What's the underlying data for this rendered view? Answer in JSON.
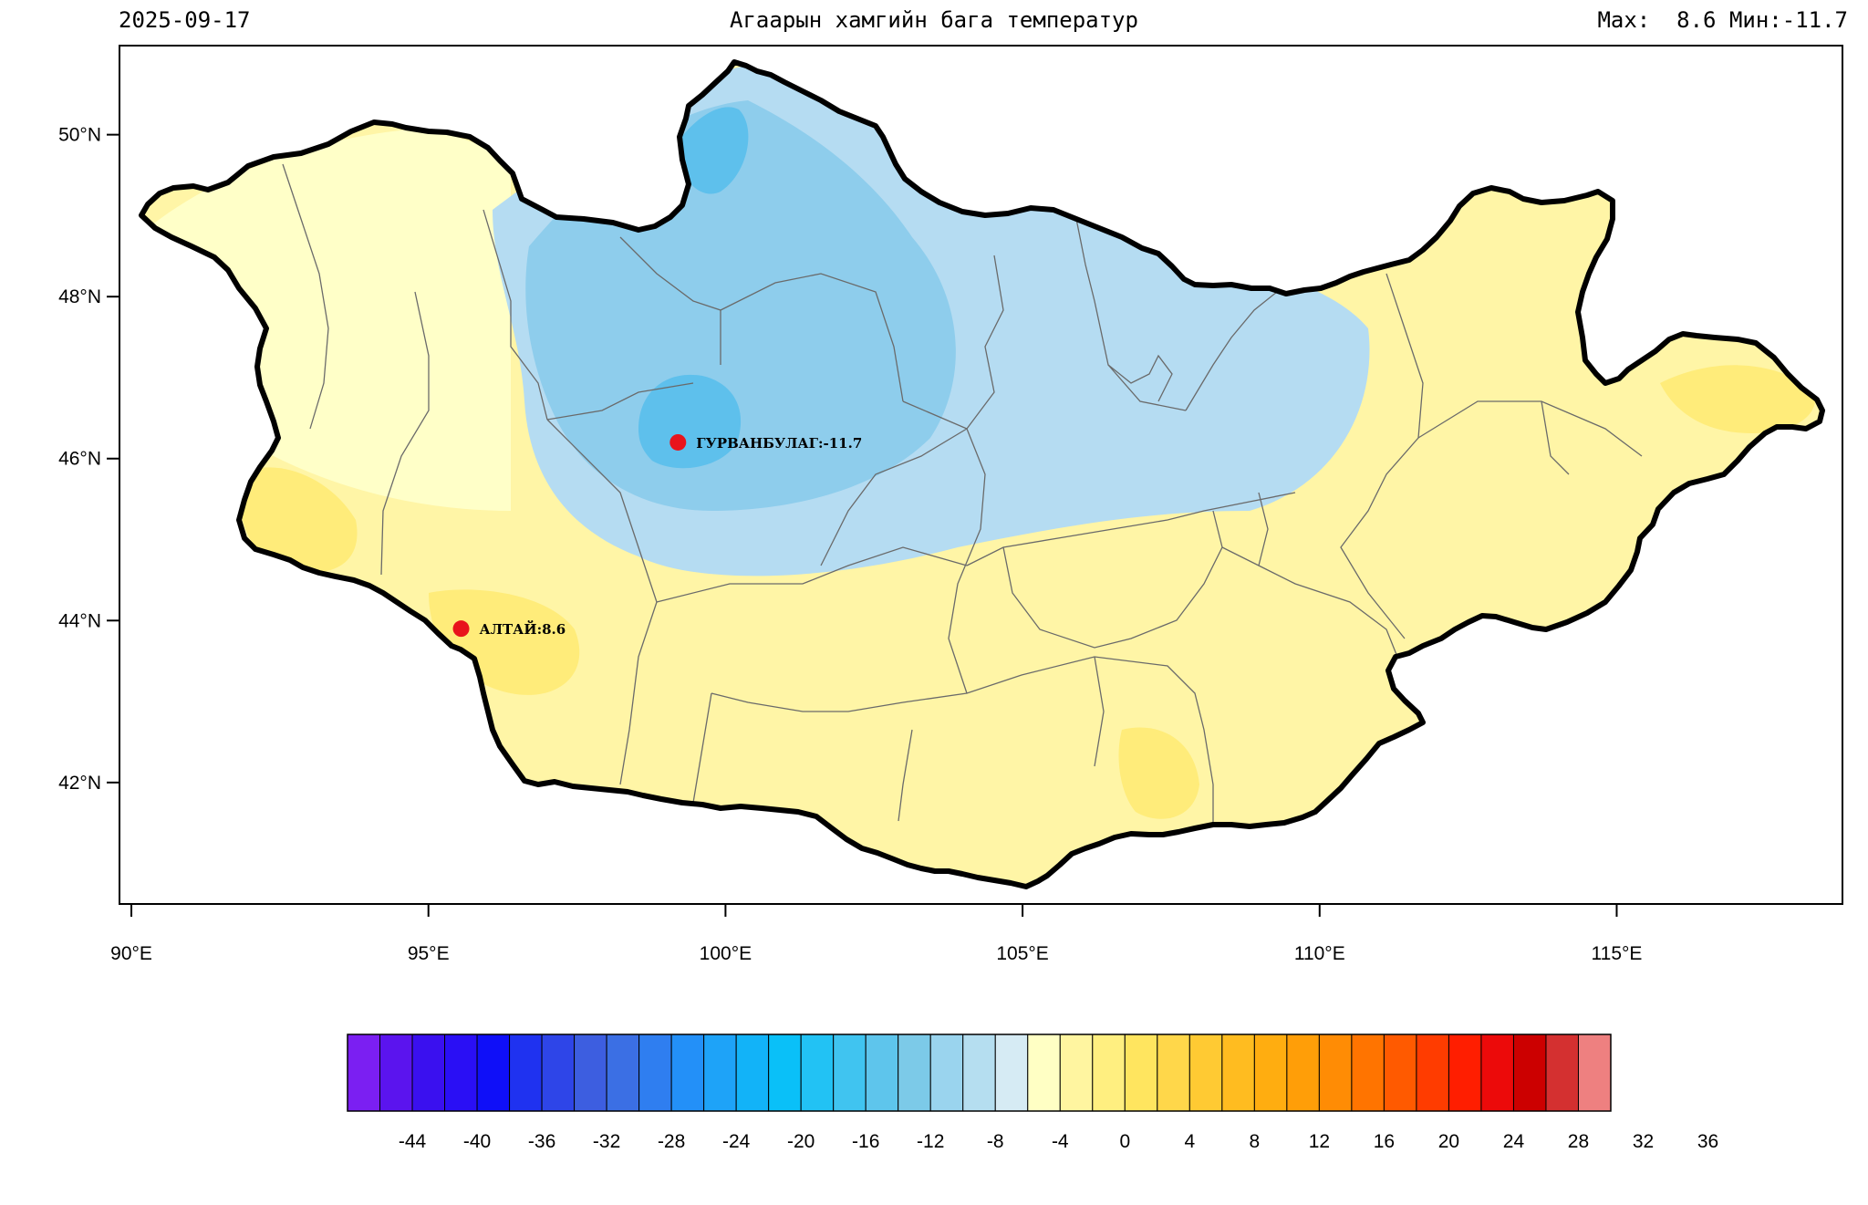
{
  "header": {
    "date": "2025-09-17",
    "title": "Агаарын хамгийн бага температур",
    "stats": "Max:  8.6 Мин:-11.7"
  },
  "axes": {
    "lat_labels": [
      "50°N",
      "48°N",
      "46°N",
      "44°N",
      "42°N"
    ],
    "lat_values": [
      50,
      48,
      46,
      44,
      42
    ],
    "lon_labels": [
      "90°E",
      "95°E",
      "100°E",
      "105°E",
      "110°E",
      "115°E"
    ],
    "lon_values": [
      90,
      95,
      100,
      105,
      110,
      115
    ],
    "lon_range": [
      89.8,
      118.8
    ],
    "lat_range": [
      40.5,
      51.1
    ]
  },
  "stations": [
    {
      "name": "ГУРВАНБУЛАГ",
      "value": -11.7,
      "label": "ГУРВАНБУЛАГ:-11.7",
      "lon": 99.2,
      "lat": 46.2,
      "color": "#e8141c"
    },
    {
      "name": "АЛТАЙ",
      "value": 8.6,
      "label": "АЛТАЙ:8.6",
      "lon": 95.55,
      "lat": 43.9,
      "color": "#e8141c"
    }
  ],
  "colorbar": {
    "colors": [
      "#7b1ff2",
      "#5b14ee",
      "#3a10ef",
      "#2a0ff5",
      "#0f0ff8",
      "#1f32f0",
      "#2e45e8",
      "#3d5ee0",
      "#3b6fe4",
      "#2f7ef0",
      "#2390f8",
      "#1ea3f8",
      "#12b3f8",
      "#0ac0f8",
      "#22c2f4",
      "#40c4f0",
      "#5ec5ec",
      "#7ccae8",
      "#9ad4ee",
      "#b5def0",
      "#d6ebf4",
      "#ffffc4",
      "#fff5a0",
      "#ffef80",
      "#ffe55f",
      "#ffd74a",
      "#ffca33",
      "#ffbc20",
      "#ffad10",
      "#ff9e08",
      "#ff8c05",
      "#ff7400",
      "#ff5a00",
      "#ff3c00",
      "#ff1e00",
      "#ec0a0a",
      "#cc0000",
      "#d43030",
      "#ee8080"
    ],
    "tick_values": [
      -44,
      -40,
      -36,
      -32,
      -28,
      -24,
      -20,
      -16,
      -12,
      -8,
      -4,
      0,
      4,
      8,
      12,
      16,
      20,
      24,
      28,
      32,
      36
    ],
    "tick_labels": [
      "-44",
      "-40",
      "-36",
      "-32",
      "-28",
      "-24",
      "-20",
      "-16",
      "-12",
      "-8",
      "-4",
      "0",
      "4",
      "8",
      "12",
      "16",
      "20",
      "24",
      "28",
      "32",
      "36"
    ]
  },
  "field": {
    "colors": {
      "cold_strong": "#5ec0ec",
      "cold": "#8ecdec",
      "cool": "#b5dcf2",
      "near_zero": "#ffffc8",
      "mild": "#fff5a6",
      "warm": "#ffec7a"
    }
  }
}
